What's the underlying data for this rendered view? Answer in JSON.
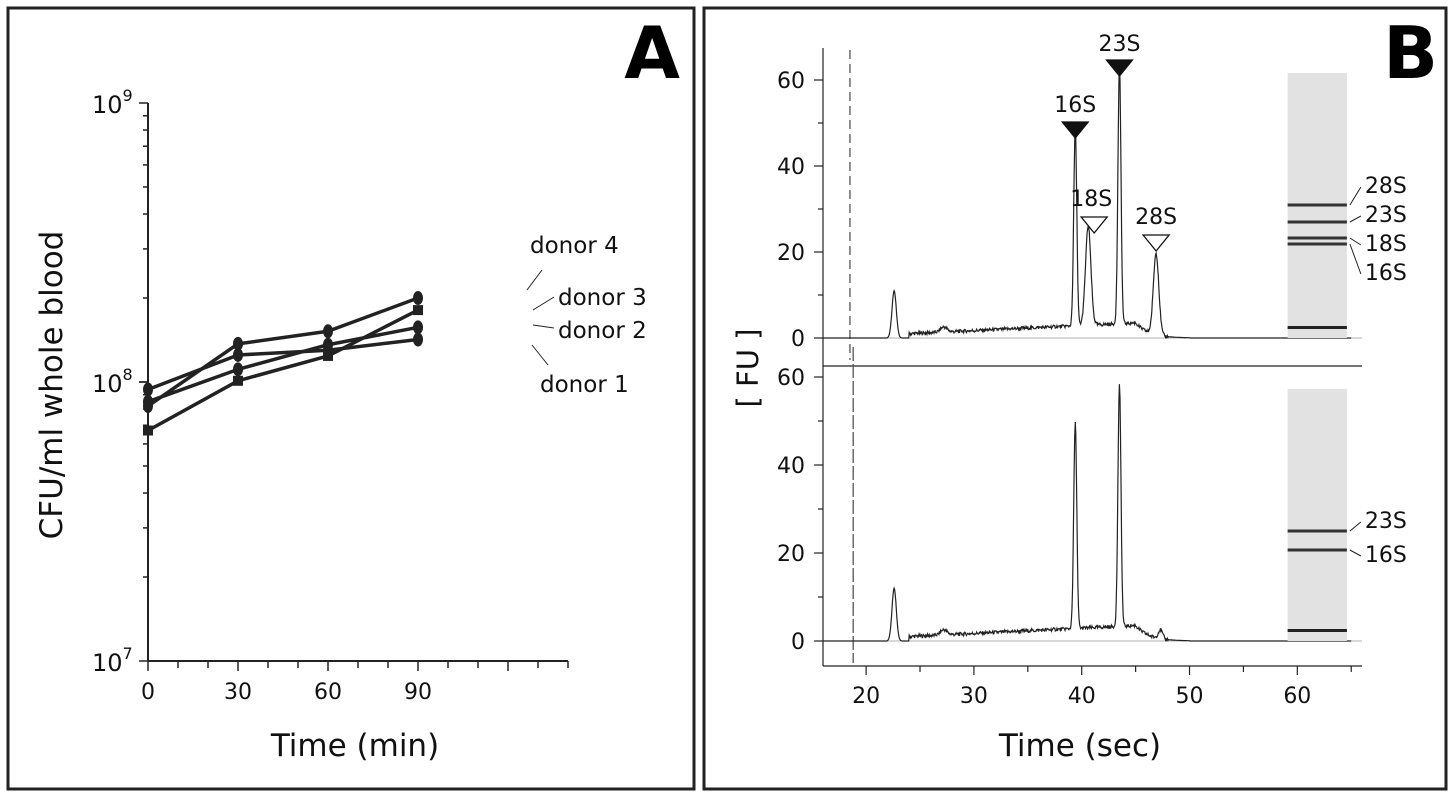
{
  "chart_data": [
    {
      "panel": "A",
      "type": "line",
      "xlabel": "Time (min)",
      "ylabel": "CFU/ml whole blood",
      "y_scale": "log",
      "xlim": [
        0,
        140
      ],
      "ylim": [
        10000000,
        1000000000
      ],
      "x_ticks": [
        "0",
        "30",
        "60",
        "90"
      ],
      "y_tick_labels": [
        {
          "base": "10",
          "exp": "7"
        },
        {
          "base": "10",
          "exp": "8"
        },
        {
          "base": "10",
          "exp": "9"
        }
      ],
      "x": [
        0,
        30,
        60,
        90
      ],
      "series": [
        {
          "name": "donor 4",
          "values": [
            82000000,
            137000000,
            152000000,
            200000000
          ]
        },
        {
          "name": "donor 3",
          "values": [
            67000000,
            101000000,
            124000000,
            181000000
          ]
        },
        {
          "name": "donor 2",
          "values": [
            85000000,
            111000000,
            136000000,
            157000000
          ]
        },
        {
          "name": "donor 1",
          "values": [
            94000000,
            125000000,
            130000000,
            142000000
          ]
        }
      ],
      "line_color": "#222222",
      "grid": false
    },
    {
      "panel": "B",
      "type": "line",
      "xlabel": "Time (sec)",
      "ylabel": "[ FU ]",
      "xlim": [
        16,
        66
      ],
      "x_ticks": [
        "20",
        "30",
        "40",
        "50",
        "60"
      ],
      "y_ticks": [
        "0",
        "20",
        "40",
        "60"
      ],
      "grid": false,
      "subplots": [
        {
          "name": "top",
          "ylim": [
            -5,
            65
          ],
          "marker_position": 18.5,
          "peaks": [
            {
              "x": 22.6,
              "y": 11
            },
            {
              "x": 39.4,
              "y": 46
            },
            {
              "x": 40.6,
              "y": 23
            },
            {
              "x": 43.5,
              "y": 60
            },
            {
              "x": 46.9,
              "y": 19
            }
          ],
          "annotations": [
            {
              "label": "16S",
              "marker": "filled",
              "x": 39.4
            },
            {
              "label": "23S",
              "marker": "filled",
              "x": 43.5
            },
            {
              "label": "18S",
              "marker": "open",
              "x": 40.6
            },
            {
              "label": "28S",
              "marker": "open",
              "x": 46.9
            }
          ],
          "gel_bands": [
            "28S",
            "23S",
            "18S",
            "16S"
          ]
        },
        {
          "name": "bottom",
          "ylim": [
            -5,
            60
          ],
          "marker_position": 18.8,
          "peaks": [
            {
              "x": 22.6,
              "y": 12
            },
            {
              "x": 39.4,
              "y": 47
            },
            {
              "x": 43.5,
              "y": 55
            },
            {
              "x": 47.3,
              "y": 2
            }
          ],
          "gel_bands": [
            "23S",
            "16S"
          ]
        }
      ]
    }
  ]
}
